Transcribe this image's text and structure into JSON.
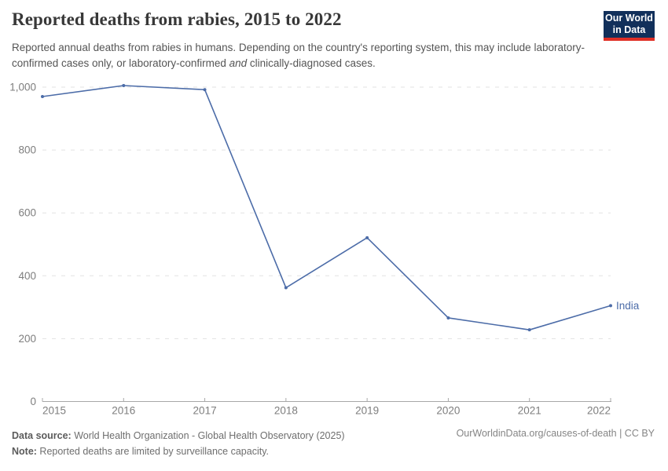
{
  "header": {
    "title": "Reported deaths from rabies, 2015 to 2022",
    "subtitle": {
      "before_italic": "Reported annual deaths from rabies in humans. Depending on the country's reporting system, this may include laboratory-confirmed cases only, or laboratory-confirmed ",
      "italic": "and",
      "after_italic": " clinically-diagnosed cases."
    },
    "logo": {
      "line1": "Our World",
      "line2": "in Data",
      "bg_color": "#12305b",
      "accent_color": "#e02f26",
      "text_color": "#ffffff"
    }
  },
  "chart_data": {
    "type": "line",
    "title": "Reported deaths from rabies, 2015 to 2022",
    "x": [
      2015,
      2016,
      2017,
      2018,
      2019,
      2020,
      2021,
      2022
    ],
    "series": [
      {
        "name": "India",
        "values": [
          970,
          1005,
          992,
          362,
          521,
          266,
          228,
          305
        ],
        "color": "#4c6ca8"
      }
    ],
    "xlabel": "",
    "ylabel": "",
    "ylim": [
      0,
      1000
    ],
    "yticks": [
      0,
      200,
      400,
      600,
      800,
      1000
    ],
    "grid": "horizontal-dashed",
    "legend_position": "end-of-line-label",
    "marker": "dot"
  },
  "colors": {
    "line": "#4c6ca8",
    "grid": "#e2e2e2",
    "axis": "#a8a8a8",
    "tick_label": "#7e7e7e",
    "title": "#383838",
    "subtitle": "#555555"
  },
  "footer": {
    "datasource_label": "Data source:",
    "datasource_value": " World Health Organization - Global Health Observatory (2025)",
    "note_label": "Note:",
    "note_value": " Reported deaths are limited by surveillance capacity.",
    "link": "OurWorldinData.org/causes-of-death | CC BY"
  }
}
